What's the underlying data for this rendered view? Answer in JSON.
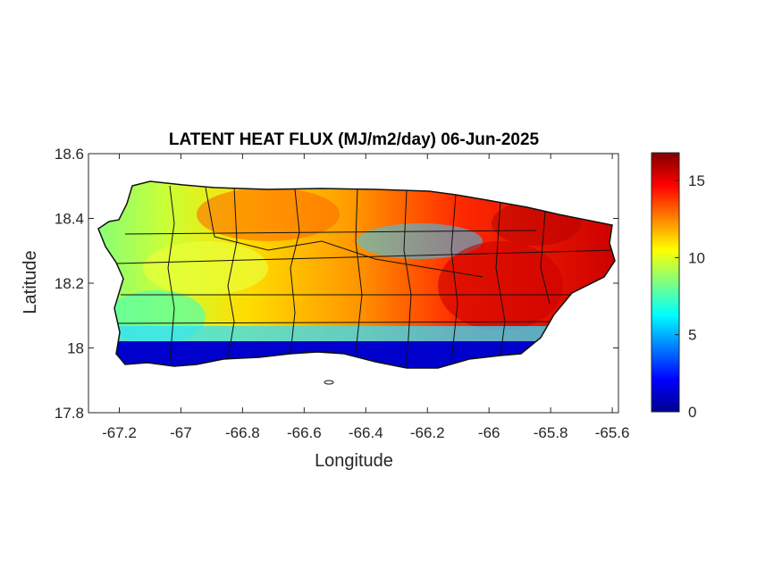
{
  "chart_data": {
    "type": "heatmap",
    "title": "LATENT HEAT FLUX (MJ/m2/day) 06-Jun-2025",
    "xlabel": "Longitude",
    "ylabel": "Latitude",
    "xlim": [
      -67.3,
      -65.58
    ],
    "ylim": [
      17.8,
      18.6
    ],
    "x_ticks": [
      -67.2,
      -67,
      -66.8,
      -66.6,
      -66.4,
      -66.2,
      -66,
      -65.8,
      -65.6
    ],
    "x_tick_labels": [
      "-67.2",
      "-67",
      "-66.8",
      "-66.6",
      "-66.4",
      "-66.2",
      "-66",
      "-65.8",
      "-65.6"
    ],
    "y_ticks": [
      17.8,
      18,
      18.2,
      18.4,
      18.6
    ],
    "y_tick_labels": [
      "17.8",
      "18",
      "18.2",
      "18.4",
      "18.6"
    ],
    "colorbar": {
      "colormap": "jet",
      "clim": [
        0,
        16.8
      ],
      "ticks": [
        0,
        5,
        10,
        15
      ],
      "tick_labels": [
        "0",
        "5",
        "10",
        "15"
      ]
    },
    "approximate_regions": [
      {
        "lon": -66.0,
        "lat": 18.2,
        "value": 16
      },
      {
        "lon": -65.8,
        "lat": 18.25,
        "value": 16
      },
      {
        "lon": -66.85,
        "lat": 18.42,
        "value": 14
      },
      {
        "lon": -67.0,
        "lat": 18.25,
        "value": 10
      },
      {
        "lon": -67.15,
        "lat": 18.1,
        "value": 8
      },
      {
        "lon": -66.3,
        "lat": 18.35,
        "value": 6
      },
      {
        "lon": -66.5,
        "lat": 17.97,
        "value": 1
      },
      {
        "lon": -67.15,
        "lat": 17.98,
        "value": 1
      }
    ],
    "grid": false
  }
}
